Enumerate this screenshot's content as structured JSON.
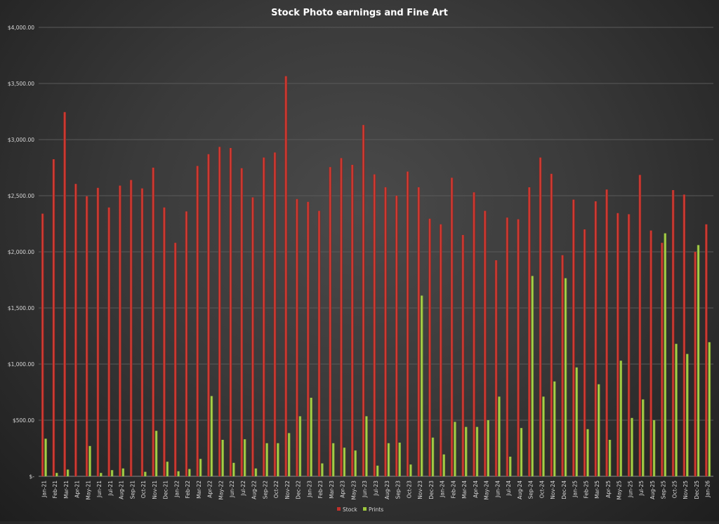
{
  "chart_data": {
    "type": "bar",
    "title": "Stock Photo earnings and Fine Art",
    "xlabel": "",
    "ylabel": "",
    "ylim": [
      0,
      4000
    ],
    "yticks": [
      {
        "value": 0,
        "label": "$-"
      },
      {
        "value": 500,
        "label": "$500.00"
      },
      {
        "value": 1000,
        "label": "$1,000.00"
      },
      {
        "value": 1500,
        "label": "$1,500.00"
      },
      {
        "value": 2000,
        "label": "$2,000.00"
      },
      {
        "value": 2500,
        "label": "$2,500.00"
      },
      {
        "value": 3000,
        "label": "$3,000.00"
      },
      {
        "value": 3500,
        "label": "$3,500.00"
      },
      {
        "value": 4000,
        "label": "$4,000.00"
      }
    ],
    "grid": true,
    "legend_position": "bottom",
    "categories": [
      "Jan-21",
      "Feb-21",
      "Mar-21",
      "Apr-21",
      "May-21",
      "Jun-21",
      "Jul-21",
      "Aug-21",
      "Sep-21",
      "Oct-21",
      "Nov-21",
      "Dec-21",
      "Jan-22",
      "Feb-22",
      "Mar-22",
      "Apr-22",
      "May-22",
      "Jun-22",
      "Jul-22",
      "Aug-22",
      "Sep-22",
      "Oct-22",
      "Nov-22",
      "Dec-22",
      "Jan-23",
      "Feb-23",
      "Mar-23",
      "Apr-23",
      "May-23",
      "Jun-23",
      "Jul-23",
      "Aug-23",
      "Sep-23",
      "Oct-23",
      "Nov-23",
      "Dec-23",
      "Jan-24",
      "Feb-24",
      "Mar-24",
      "Apr-24",
      "May-24",
      "Jun-24",
      "Jul-24",
      "Aug-24",
      "Sep-24",
      "Oct-24",
      "Nov-24",
      "Dec-24",
      "Jan-25",
      "Feb-25",
      "Mar-25",
      "Apr-25",
      "May-25",
      "Jun-25",
      "Jul-25",
      "Aug-25",
      "Sep-25",
      "Oct-25",
      "Nov-25",
      "Dec-25",
      "Jan-26"
    ],
    "series": [
      {
        "name": "Stock",
        "color": "#c0302a",
        "values": [
          2340,
          2825,
          3245,
          2605,
          2495,
          2570,
          2395,
          2590,
          2640,
          2565,
          2750,
          2395,
          2080,
          2360,
          2765,
          2870,
          2935,
          2925,
          2745,
          2485,
          2840,
          2885,
          3565,
          2470,
          2445,
          2365,
          2755,
          2835,
          2775,
          3130,
          2690,
          2575,
          2500,
          2715,
          2575,
          2295,
          2245,
          2660,
          2150,
          2530,
          2365,
          1925,
          2305,
          2290,
          2575,
          2840,
          2695,
          1970,
          2465,
          2200,
          2450,
          2555,
          2345,
          2335,
          2685,
          2190,
          2080,
          2550,
          2510,
          2000,
          2245
        ]
      },
      {
        "name": "Prints",
        "color": "#9cc73b",
        "values": [
          335,
          30,
          60,
          0,
          270,
          30,
          55,
          70,
          0,
          40,
          405,
          130,
          45,
          65,
          155,
          715,
          325,
          120,
          330,
          70,
          295,
          295,
          385,
          535,
          700,
          115,
          295,
          255,
          230,
          535,
          95,
          295,
          300,
          105,
          1610,
          345,
          195,
          485,
          440,
          440,
          500,
          710,
          175,
          430,
          1785,
          710,
          845,
          1765,
          970,
          420,
          820,
          325,
          1030,
          520,
          685,
          500,
          2165,
          1180,
          1090,
          2060,
          1195
        ]
      }
    ]
  }
}
